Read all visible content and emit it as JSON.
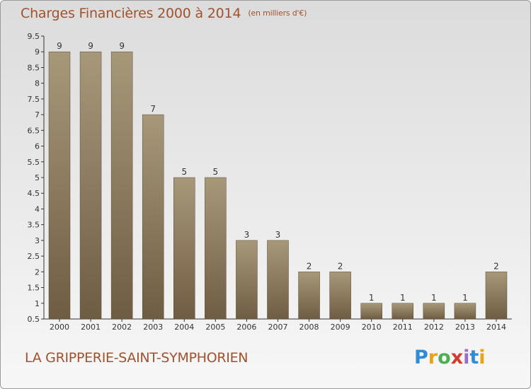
{
  "title": {
    "main": "Charges Financières 2000 à 2014",
    "unit": "(en milliers d'€)"
  },
  "commune": "LA GRIPPERIE-SAINT-SYMPHORIEN",
  "logo": {
    "letters": [
      "P",
      "r",
      "o",
      "x",
      "i",
      "t",
      "i"
    ],
    "colors": [
      "#2e8bd6",
      "#e8a317",
      "#4caf50",
      "#d63a2e",
      "#9c6ec9",
      "#2e8bd6",
      "#e8a317"
    ]
  },
  "colors": {
    "bar_dark": "#6f5d43",
    "bar_light": "#a8987a",
    "title": "#a0522d"
  },
  "chart_data": {
    "type": "bar",
    "title": "Charges Financières 2000 à 2014",
    "subtitle": "(en milliers d'€)",
    "categories": [
      "2000",
      "2001",
      "2002",
      "2003",
      "2004",
      "2005",
      "2006",
      "2007",
      "2008",
      "2009",
      "2010",
      "2011",
      "2012",
      "2013",
      "2014"
    ],
    "values": [
      9,
      9,
      9,
      7,
      5,
      5,
      3,
      3,
      2,
      2,
      1,
      1,
      1,
      1,
      2
    ],
    "value_labels": [
      "9",
      "9",
      "9",
      "7",
      "5",
      "5",
      "3",
      "3",
      "2",
      "2",
      "1",
      "1",
      "1",
      "1",
      "2"
    ],
    "yticks": [
      "0.5",
      "1",
      "1.5",
      "2",
      "2.5",
      "3",
      "3.5",
      "4",
      "4.5",
      "5",
      "5.5",
      "6",
      "6.5",
      "7",
      "7.5",
      "8",
      "8.5",
      "9",
      "9.5"
    ],
    "ylim": [
      0.5,
      9.5
    ],
    "xlabel": "",
    "ylabel": "",
    "grid": false
  }
}
